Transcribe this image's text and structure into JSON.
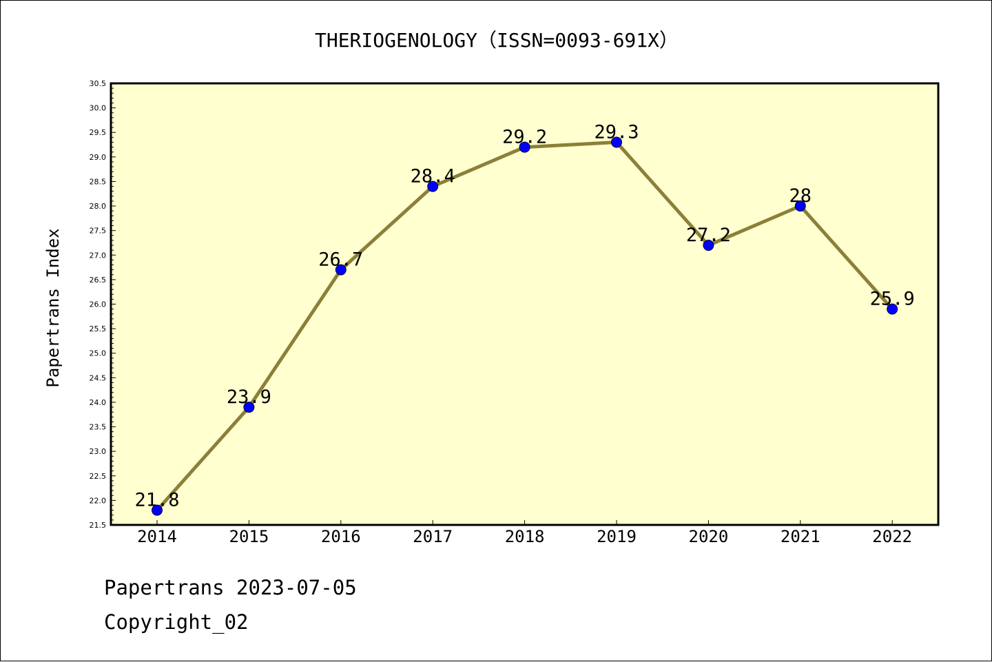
{
  "chart_data": {
    "type": "line",
    "title": "THERIOGENOLOGY（ISSN=0093-691X）",
    "ylabel": "Papertrans Index",
    "xlabel": "",
    "categories": [
      "2014",
      "2015",
      "2016",
      "2017",
      "2018",
      "2019",
      "2020",
      "2021",
      "2022"
    ],
    "series": [
      {
        "values": [
          21.8,
          23.9,
          26.7,
          28.4,
          29.2,
          29.3,
          27.2,
          28,
          25.9
        ]
      }
    ],
    "data_labels": [
      "21.8",
      "23.9",
      "26.7",
      "28.4",
      "29.2",
      "29.3",
      "27.2",
      "28",
      "25.9"
    ],
    "ylim": [
      21.5,
      30.5
    ],
    "y_ticks": [
      "21.5",
      "22.0",
      "22.5",
      "23.0",
      "23.5",
      "24.0",
      "24.5",
      "25.0",
      "25.5",
      "26.0",
      "26.5",
      "27.0",
      "27.5",
      "28.0",
      "28.5",
      "29.0",
      "29.5",
      "30.0",
      "30.5"
    ],
    "grid": false,
    "colors": {
      "line": "#8b8038",
      "marker": "#0000ff",
      "plot_background": "#ffffd0"
    }
  },
  "footer": {
    "date_line": "Papertrans 2023-07-05",
    "copyright_line": "Copyright_02"
  }
}
